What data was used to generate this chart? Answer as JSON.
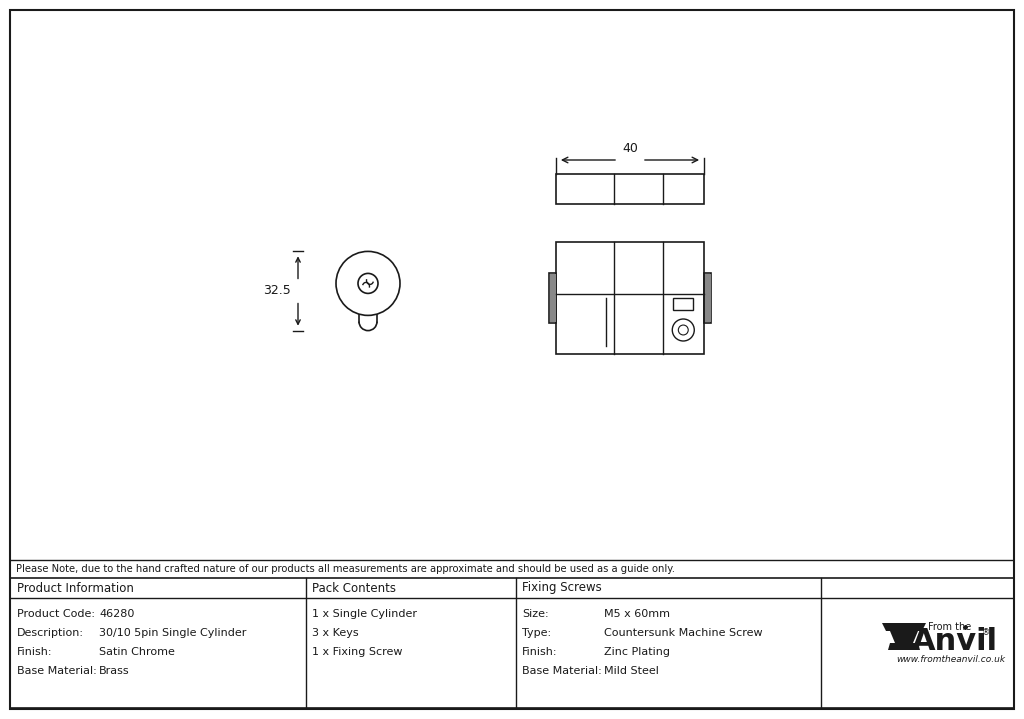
{
  "bg_color": "#ffffff",
  "drawing_color": "#1a1a1a",
  "note_text": "Please Note, due to the hand crafted nature of our products all measurements are approximate and should be used as a guide only.",
  "table": {
    "col1_header": "Product Information",
    "col2_header": "Pack Contents",
    "col3_header": "Fixing Screws",
    "product_code_label": "Product Code:",
    "product_code_value": "46280",
    "description_label": "Description:",
    "description_value": "30/10 5pin Single Cylinder",
    "finish_label": "Finish:",
    "finish_value": "Satin Chrome",
    "base_material_label": "Base Material:",
    "base_material_value": "Brass",
    "pack1": "1 x Single Cylinder",
    "pack2": "3 x Keys",
    "pack3": "1 x Fixing Screw",
    "size_label": "Size:",
    "size_value": "M5 x 60mm",
    "type_label": "Type:",
    "type_value": "Countersunk Machine Screw",
    "finish2_label": "Finish:",
    "finish2_value": "Zinc Plating",
    "base_material2_label": "Base Material:",
    "base_material2_value": "Mild Steel",
    "logo_text1": "From the",
    "logo_text2": "Anvil",
    "logo_text3": "www.fromtheanvil.co.uk"
  },
  "dim_40": "40",
  "dim_32_5": "32.5"
}
